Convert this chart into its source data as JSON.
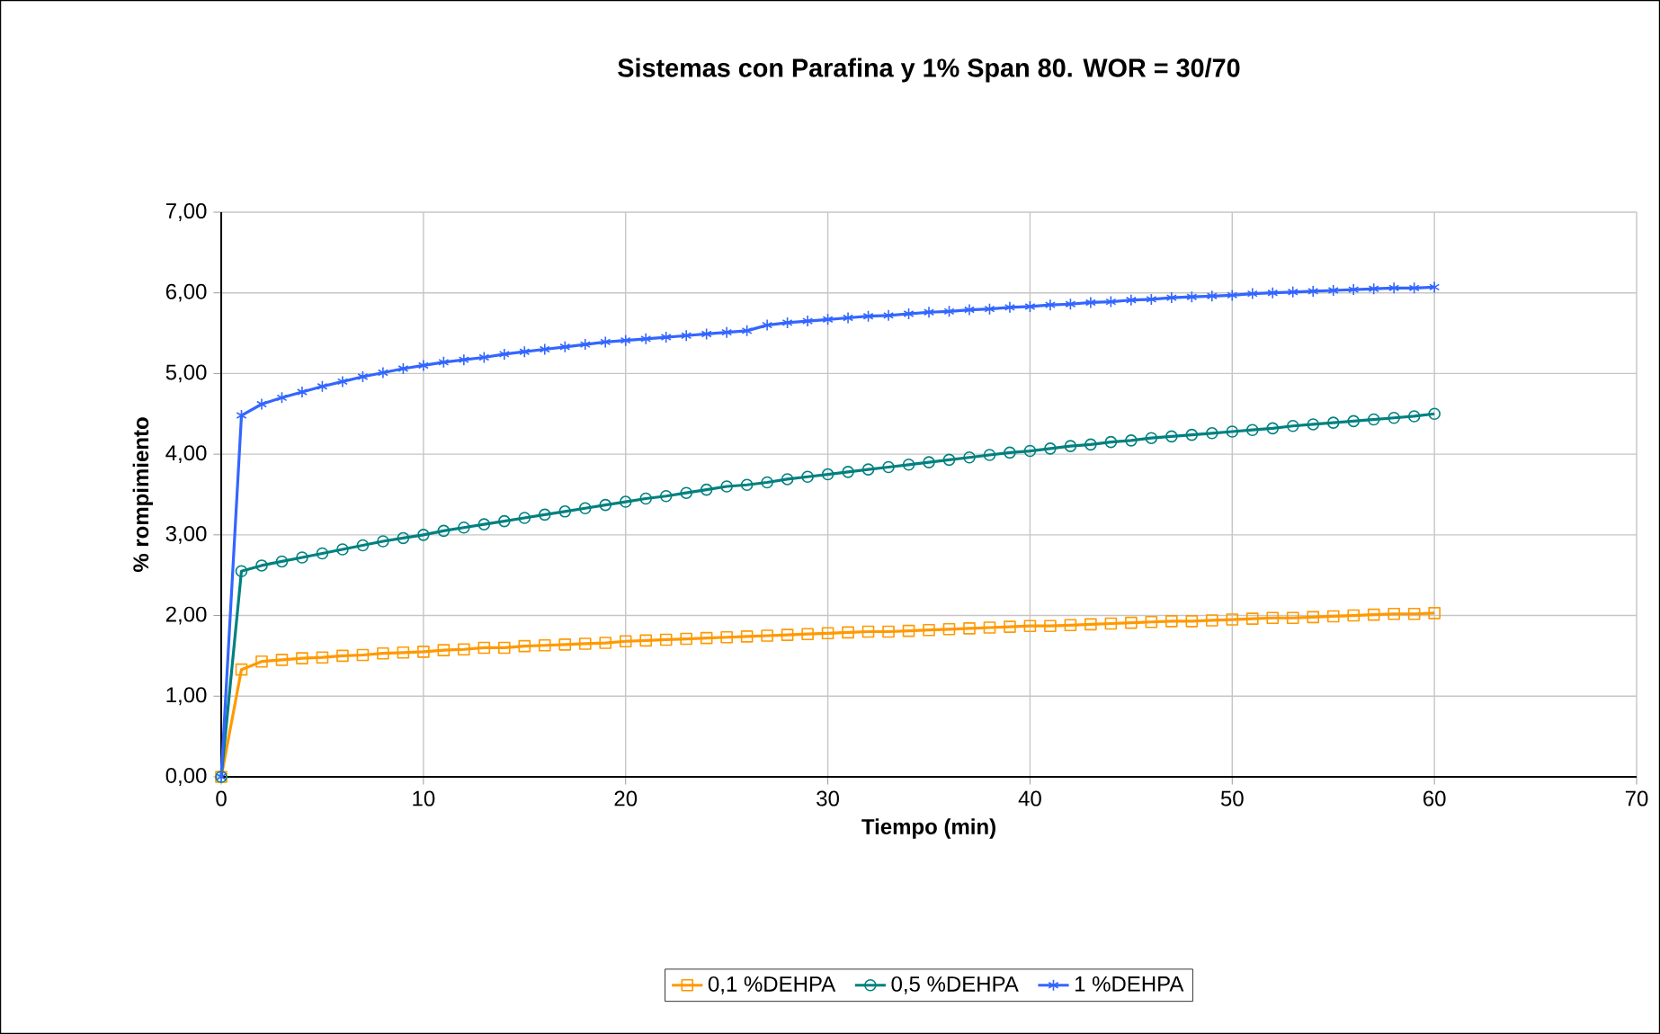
{
  "chart_data": {
    "type": "line",
    "title": "Sistemas con Parafina y 1% Span 80. WOR = 30/70",
    "xlabel": "Tiempo (min)",
    "ylabel": "% rompimiento",
    "x": [
      0,
      1,
      2,
      3,
      4,
      5,
      6,
      7,
      8,
      9,
      10,
      11,
      12,
      13,
      14,
      15,
      16,
      17,
      18,
      19,
      20,
      21,
      22,
      23,
      24,
      25,
      26,
      27,
      28,
      29,
      30,
      31,
      32,
      33,
      34,
      35,
      36,
      37,
      38,
      39,
      40,
      41,
      42,
      43,
      44,
      45,
      46,
      47,
      48,
      49,
      50,
      51,
      52,
      53,
      54,
      55,
      56,
      57,
      58,
      59,
      60
    ],
    "series": [
      {
        "name": "0,1 %DEHPA",
        "color": "#ff9900",
        "marker": "square",
        "values": [
          0,
          1.33,
          1.43,
          1.45,
          1.47,
          1.48,
          1.5,
          1.51,
          1.53,
          1.54,
          1.55,
          1.57,
          1.58,
          1.6,
          1.6,
          1.62,
          1.63,
          1.64,
          1.65,
          1.66,
          1.68,
          1.69,
          1.7,
          1.71,
          1.72,
          1.73,
          1.74,
          1.75,
          1.76,
          1.77,
          1.78,
          1.79,
          1.8,
          1.8,
          1.81,
          1.82,
          1.83,
          1.84,
          1.85,
          1.86,
          1.87,
          1.87,
          1.88,
          1.89,
          1.9,
          1.91,
          1.92,
          1.93,
          1.93,
          1.94,
          1.95,
          1.96,
          1.97,
          1.97,
          1.98,
          1.99,
          2.0,
          2.01,
          2.02,
          2.02,
          2.03
        ]
      },
      {
        "name": "0,5 %DEHPA",
        "color": "#008080",
        "marker": "circle",
        "values": [
          0,
          2.55,
          2.62,
          2.67,
          2.72,
          2.77,
          2.82,
          2.87,
          2.92,
          2.96,
          3.0,
          3.05,
          3.09,
          3.13,
          3.17,
          3.21,
          3.25,
          3.29,
          3.33,
          3.37,
          3.41,
          3.45,
          3.48,
          3.52,
          3.56,
          3.6,
          3.62,
          3.65,
          3.69,
          3.72,
          3.75,
          3.78,
          3.81,
          3.84,
          3.87,
          3.9,
          3.93,
          3.96,
          3.99,
          4.02,
          4.04,
          4.07,
          4.1,
          4.12,
          4.15,
          4.17,
          4.2,
          4.22,
          4.24,
          4.26,
          4.28,
          4.3,
          4.32,
          4.35,
          4.37,
          4.39,
          4.41,
          4.43,
          4.45,
          4.47,
          4.5
        ]
      },
      {
        "name": "1 %DEHPA",
        "color": "#3366ff",
        "marker": "cross",
        "values": [
          0,
          4.48,
          4.62,
          4.7,
          4.77,
          4.84,
          4.9,
          4.96,
          5.01,
          5.06,
          5.1,
          5.14,
          5.17,
          5.2,
          5.24,
          5.27,
          5.3,
          5.33,
          5.36,
          5.39,
          5.41,
          5.43,
          5.45,
          5.47,
          5.49,
          5.51,
          5.53,
          5.6,
          5.63,
          5.65,
          5.67,
          5.69,
          5.71,
          5.72,
          5.74,
          5.76,
          5.77,
          5.79,
          5.8,
          5.82,
          5.83,
          5.85,
          5.86,
          5.88,
          5.89,
          5.91,
          5.92,
          5.94,
          5.95,
          5.96,
          5.97,
          5.99,
          6.0,
          6.01,
          6.02,
          6.03,
          6.04,
          6.05,
          6.06,
          6.06,
          6.07
        ]
      }
    ],
    "xlim": [
      0,
      70
    ],
    "xticks": [
      0,
      10,
      20,
      30,
      40,
      50,
      60,
      70
    ],
    "ylim": [
      0,
      7
    ],
    "yticks": [
      {
        "value": 0,
        "label": "0,00"
      },
      {
        "value": 1,
        "label": "1,00"
      },
      {
        "value": 2,
        "label": "2,00"
      },
      {
        "value": 3,
        "label": "3,00"
      },
      {
        "value": 4,
        "label": "4,00"
      },
      {
        "value": 5,
        "label": "5,00"
      },
      {
        "value": 6,
        "label": "6,00"
      },
      {
        "value": 7,
        "label": "7,00"
      }
    ],
    "grid": true,
    "legend": "bottom",
    "line_style": "solid"
  }
}
